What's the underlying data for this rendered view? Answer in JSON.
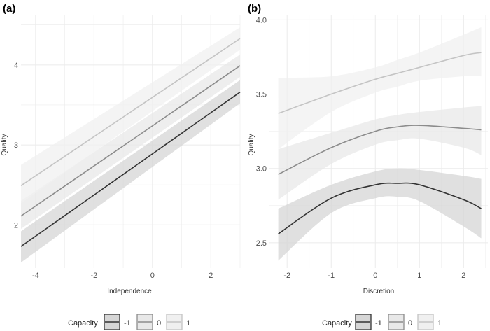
{
  "legend": {
    "title": "Capacity",
    "entries": [
      "-1",
      "0",
      "1"
    ]
  },
  "colors": {
    "-1": "#333333",
    "0": "#8c8c8c",
    "1": "#c4c4c4",
    "band_-1": "#d6d6d6",
    "band_0": "#e8e8e8",
    "band_1": "#f0f0f0",
    "grid": "#ebebeb"
  },
  "chart_data": [
    {
      "type": "line",
      "panel_label": "(a)",
      "xlabel": "Independence",
      "ylabel": "Quality",
      "xlim": [
        -4.5,
        3
      ],
      "ylim": [
        1.46,
        4.62
      ],
      "xticks": [
        -4,
        -2,
        0,
        2
      ],
      "yticks": [
        2,
        3,
        4
      ],
      "grid": true,
      "legend_position": "bottom",
      "x": [
        -4.5,
        3
      ],
      "series": [
        {
          "name": "-1",
          "values": [
            1.73,
            3.66
          ],
          "lower": [
            1.53,
            3.52
          ],
          "upper": [
            1.92,
            3.81
          ]
        },
        {
          "name": "0",
          "values": [
            2.11,
            3.99
          ],
          "lower": [
            1.95,
            3.85
          ],
          "upper": [
            2.3,
            4.13
          ]
        },
        {
          "name": "1",
          "values": [
            2.49,
            4.33
          ],
          "lower": [
            2.27,
            4.19
          ],
          "upper": [
            2.75,
            4.47
          ]
        }
      ]
    },
    {
      "type": "line",
      "panel_label": "(b)",
      "xlabel": "Discretion",
      "ylabel": "Quality",
      "xlim": [
        -2.4,
        2.55
      ],
      "ylim": [
        2.33,
        4.03
      ],
      "xticks": [
        -2,
        -1,
        0,
        1,
        2
      ],
      "yticks": [
        "2.5",
        "3.0",
        "3.5",
        "4.0"
      ],
      "grid": true,
      "legend_position": "bottom",
      "x": [
        -2.2,
        -1,
        0,
        0.5,
        1,
        2,
        2.4
      ],
      "series": [
        {
          "name": "-1",
          "values": [
            2.56,
            2.8,
            2.89,
            2.9,
            2.89,
            2.79,
            2.73
          ],
          "lower": [
            2.38,
            2.7,
            2.8,
            2.81,
            2.78,
            2.61,
            2.53
          ],
          "upper": [
            2.73,
            2.89,
            2.98,
            3.0,
            2.99,
            2.95,
            2.93
          ]
        },
        {
          "name": "0",
          "values": [
            2.96,
            3.14,
            3.25,
            3.28,
            3.29,
            3.27,
            3.26
          ],
          "lower": [
            2.79,
            3.03,
            3.16,
            3.19,
            3.2,
            3.14,
            3.09
          ],
          "upper": [
            3.13,
            3.24,
            3.33,
            3.36,
            3.38,
            3.41,
            3.42
          ]
        },
        {
          "name": "1",
          "values": [
            3.37,
            3.5,
            3.6,
            3.64,
            3.68,
            3.76,
            3.78
          ],
          "lower": [
            3.13,
            3.38,
            3.51,
            3.55,
            3.59,
            3.62,
            3.62
          ],
          "upper": [
            3.61,
            3.62,
            3.68,
            3.73,
            3.78,
            3.9,
            3.95
          ]
        }
      ]
    }
  ]
}
